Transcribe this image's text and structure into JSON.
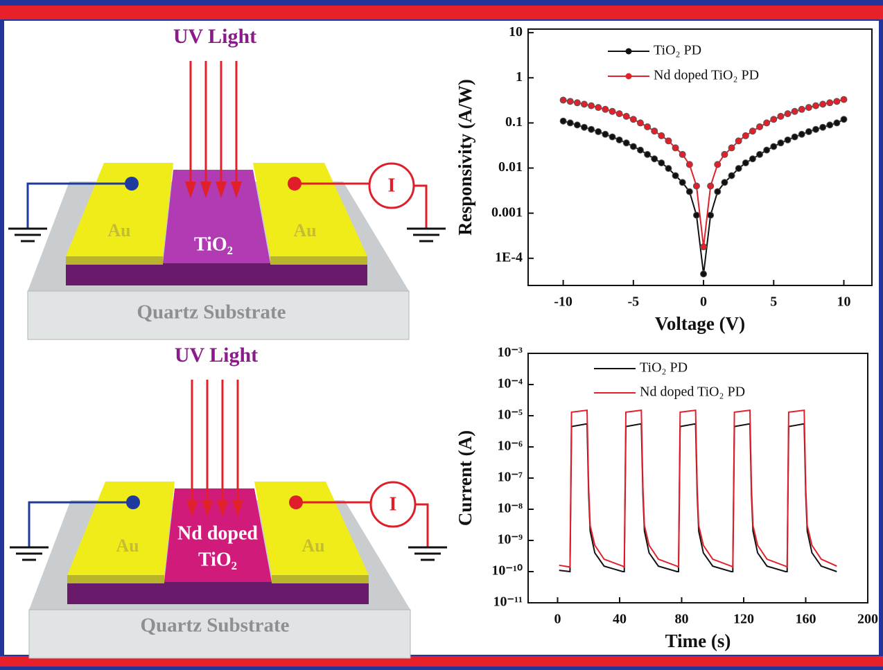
{
  "diagrams": [
    {
      "light_label": "UV Light",
      "left_electrode": "Au",
      "channel": [
        "TiO₂"
      ],
      "right_electrode": "Au",
      "meter": "I",
      "substrate": "Quartz Substrate"
    },
    {
      "light_label": "UV Light",
      "left_electrode": "Au",
      "channel": [
        "Nd doped",
        "TiO₂"
      ],
      "right_electrode": "Au",
      "meter": "I",
      "substrate": "Quartz Substrate"
    }
  ],
  "chart_data": [
    {
      "type": "line",
      "xlabel": "Voltage (V)",
      "ylabel": "Responsivity (A/W)",
      "log_y": true,
      "markers": true,
      "legend": "upper left",
      "xlim": [
        -12.5,
        12
      ],
      "xticks": [
        -10,
        -5,
        0,
        5,
        10
      ],
      "ylim": [
        2.5e-05,
        12
      ],
      "yticks": [
        10,
        1,
        0.1,
        0.01,
        0.001,
        {
          "value": 0.0001,
          "label": "1E-4"
        }
      ],
      "x": [
        -10,
        -9.5,
        -9,
        -8.5,
        -8,
        -7.5,
        -7,
        -6.5,
        -6,
        -5.5,
        -5,
        -4.5,
        -4,
        -3.5,
        -3,
        -2.5,
        -2,
        -1.5,
        -1,
        -0.5,
        0,
        0.5,
        1,
        1.5,
        2,
        2.5,
        3,
        3.5,
        4,
        4.5,
        5,
        5.5,
        6,
        6.5,
        7,
        7.5,
        8,
        8.5,
        9,
        9.5,
        10
      ],
      "series": [
        {
          "name": "TiO₂ PD",
          "color": "#111111",
          "values": [
            0.11,
            0.1,
            0.09,
            0.08,
            0.072,
            0.064,
            0.056,
            0.049,
            0.042,
            0.036,
            0.03,
            0.025,
            0.02,
            0.016,
            0.013,
            0.0098,
            0.0068,
            0.0048,
            0.003,
            0.0009,
            4.5e-05,
            0.0009,
            0.003,
            0.0048,
            0.0068,
            0.0098,
            0.013,
            0.016,
            0.02,
            0.025,
            0.03,
            0.036,
            0.042,
            0.049,
            0.056,
            0.064,
            0.072,
            0.08,
            0.09,
            0.1,
            0.12
          ]
        },
        {
          "name": "Nd doped TiO₂ PD",
          "color": "#e0202a",
          "values": [
            0.32,
            0.3,
            0.28,
            0.26,
            0.24,
            0.22,
            0.2,
            0.18,
            0.16,
            0.14,
            0.12,
            0.1,
            0.082,
            0.066,
            0.052,
            0.04,
            0.028,
            0.02,
            0.012,
            0.004,
            0.00018,
            0.004,
            0.012,
            0.02,
            0.028,
            0.04,
            0.052,
            0.066,
            0.082,
            0.1,
            0.12,
            0.14,
            0.16,
            0.18,
            0.2,
            0.22,
            0.24,
            0.26,
            0.28,
            0.3,
            0.33
          ]
        }
      ]
    },
    {
      "type": "line",
      "xlabel": "Time (s)",
      "ylabel": "Current (A)",
      "log_y": true,
      "markers": false,
      "legend": "upper left",
      "xlim": [
        -19,
        200
      ],
      "xticks": [
        0,
        40,
        80,
        120,
        160,
        200
      ],
      "ylim": [
        1e-11,
        0.001
      ],
      "yticks": [
        {
          "value": 0.001,
          "label": "10⁻³"
        },
        {
          "value": 0.0001,
          "label": "10⁻⁴"
        },
        {
          "value": 1e-05,
          "label": "10⁻⁵"
        },
        {
          "value": 1e-06,
          "label": "10⁻⁶"
        },
        {
          "value": 1e-07,
          "label": "10⁻⁷"
        },
        {
          "value": 1e-08,
          "label": "10⁻⁸"
        },
        {
          "value": 1e-09,
          "label": "10⁻⁹"
        },
        {
          "value": 1e-10,
          "label": "10⁻¹⁰"
        },
        {
          "value": 1e-11,
          "label": "10⁻¹¹"
        }
      ],
      "x": [
        1,
        8,
        9,
        19,
        20,
        21,
        24,
        30,
        42,
        43,
        44,
        54,
        55,
        56,
        59,
        65,
        77,
        78,
        79,
        89,
        90,
        91,
        94,
        100,
        112,
        113,
        114,
        124,
        125,
        126,
        129,
        135,
        147,
        148,
        149,
        159,
        160,
        161,
        164,
        170,
        180
      ],
      "series": [
        {
          "name": "TiO₂ PD",
          "color": "#111111",
          "values": [
            1.1e-10,
            1e-10,
            4.5e-06,
            5.5e-06,
            3e-08,
            2e-09,
            4e-10,
            1.5e-10,
            1e-10,
            1e-10,
            4.5e-06,
            5.5e-06,
            3e-08,
            2e-09,
            4e-10,
            1.5e-10,
            1e-10,
            1e-10,
            4.5e-06,
            5.5e-06,
            3e-08,
            2e-09,
            4e-10,
            1.5e-10,
            1e-10,
            1e-10,
            4.5e-06,
            5.5e-06,
            3e-08,
            2e-09,
            4e-10,
            1.5e-10,
            1e-10,
            1e-10,
            4.5e-06,
            5.5e-06,
            3e-08,
            2e-09,
            4e-10,
            1.5e-10,
            1e-10
          ]
        },
        {
          "name": "Nd doped TiO₂ PD",
          "color": "#e0202a",
          "values": [
            1.6e-10,
            1.4e-10,
            1.3e-05,
            1.5e-05,
            5e-08,
            3e-09,
            7e-10,
            2.5e-10,
            1.5e-10,
            1.4e-10,
            1.3e-05,
            1.5e-05,
            5e-08,
            3e-09,
            7e-10,
            2.5e-10,
            1.5e-10,
            1.4e-10,
            1.3e-05,
            1.5e-05,
            5e-08,
            3e-09,
            7e-10,
            2.5e-10,
            1.5e-10,
            1.4e-10,
            1.3e-05,
            1.5e-05,
            5e-08,
            3e-09,
            7e-10,
            2.5e-10,
            1.5e-10,
            1.4e-10,
            1.3e-05,
            1.5e-05,
            5e-08,
            3e-09,
            7e-10,
            2.5e-10,
            1.5e-10
          ]
        }
      ]
    }
  ]
}
